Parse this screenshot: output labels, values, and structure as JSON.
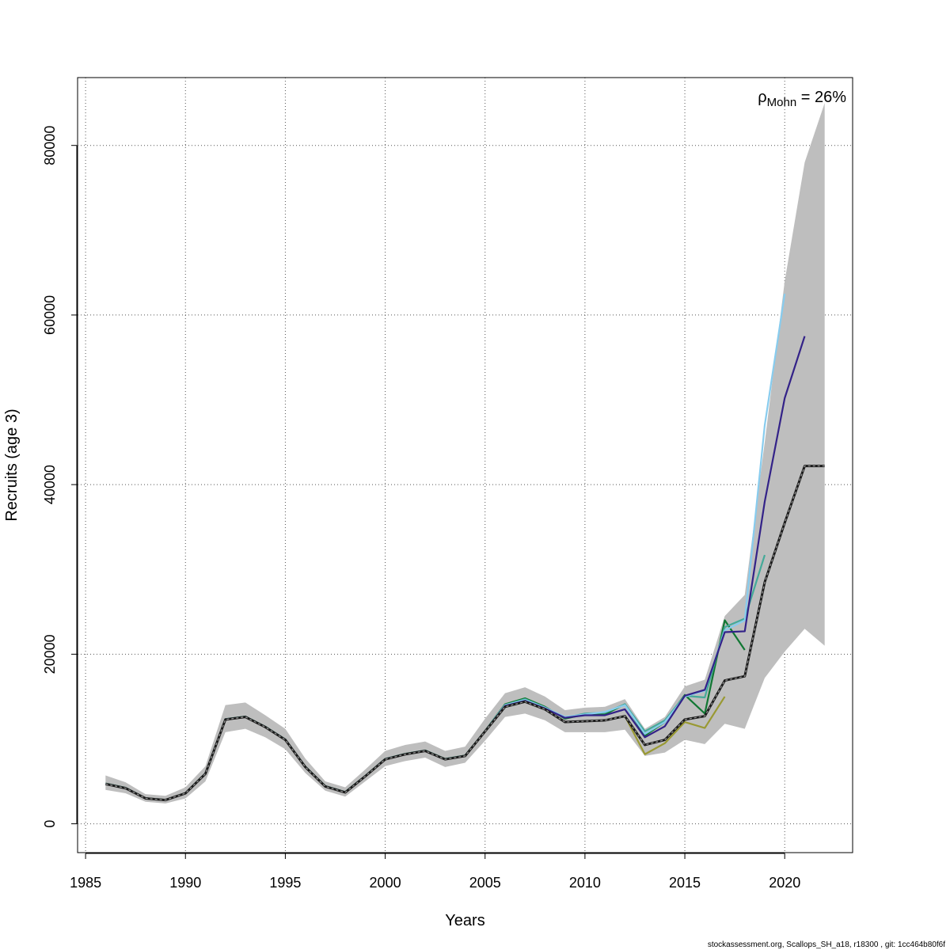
{
  "chart_data": {
    "type": "line",
    "xlabel": "Years",
    "ylabel": "Recruits (age 3)",
    "xlim": [
      1984.6,
      2023.4
    ],
    "ylim": [
      -3400,
      88000
    ],
    "x_ticks": [
      1985,
      1990,
      1995,
      2000,
      2005,
      2010,
      2015,
      2020
    ],
    "y_ticks": [
      0,
      20000,
      40000,
      60000,
      80000
    ],
    "grid": true,
    "annotation": {
      "symbol": "ρ",
      "subscript": "Mohn",
      "text": " = 26%"
    },
    "footer": "stockassessment.org, Scallops_SH_a18, r18300 , git: 1cc464b80f6f",
    "confidence_band": {
      "color": "#bebebe",
      "x": [
        1986,
        1987,
        1988,
        1989,
        1990,
        1991,
        1992,
        1993,
        1994,
        1995,
        1996,
        1997,
        1998,
        1999,
        2000,
        2001,
        2002,
        2003,
        2004,
        2005,
        2006,
        2007,
        2008,
        2009,
        2010,
        2011,
        2012,
        2013,
        2014,
        2015,
        2016,
        2017,
        2018,
        2019,
        2020,
        2021,
        2022
      ],
      "lower": [
        4000,
        3600,
        2600,
        2400,
        3000,
        5000,
        10800,
        11200,
        10200,
        8800,
        6000,
        3900,
        3200,
        5000,
        6800,
        7400,
        7800,
        6700,
        7200,
        9800,
        12600,
        13000,
        12200,
        10800,
        10800,
        10800,
        11100,
        8000,
        8400,
        9900,
        9400,
        11800,
        11200,
        17200,
        20300,
        23000,
        21000
      ],
      "upper": [
        5700,
        4900,
        3500,
        3300,
        4300,
        6800,
        14000,
        14300,
        12800,
        11200,
        7700,
        5000,
        4300,
        6400,
        8600,
        9300,
        9700,
        8600,
        9100,
        12400,
        15400,
        16100,
        15000,
        13400,
        13700,
        13800,
        14700,
        11200,
        12600,
        16200,
        17000,
        24500,
        27000,
        45000,
        64000,
        78000,
        85000
      ]
    },
    "series": [
      {
        "color": "#1a1a1a",
        "dashed": true,
        "x": [
          1986,
          1987,
          1988,
          1989,
          1990,
          1991,
          1992,
          1993,
          1994,
          1995,
          1996,
          1997,
          1998,
          1999,
          2000,
          2001,
          2002,
          2003,
          2004,
          2005,
          2006,
          2007,
          2008,
          2009,
          2010,
          2011,
          2012,
          2013,
          2014,
          2015,
          2016,
          2017,
          2018,
          2019,
          2020,
          2021,
          2022
        ],
        "values": [
          4700,
          4200,
          3000,
          2800,
          3600,
          5900,
          12300,
          12600,
          11400,
          9900,
          6700,
          4400,
          3700,
          5600,
          7600,
          8200,
          8600,
          7600,
          8000,
          10900,
          13800,
          14400,
          13500,
          12000,
          12100,
          12200,
          12700,
          9300,
          9900,
          12300,
          12700,
          16900,
          17400,
          28500,
          35500,
          42200,
          42200
        ]
      },
      {
        "color": "#999933",
        "x": [
          1986,
          1987,
          1988,
          1989,
          1990,
          1991,
          1992,
          1993,
          1994,
          1995,
          1996,
          1997,
          1998,
          1999,
          2000,
          2001,
          2002,
          2003,
          2004,
          2005,
          2006,
          2007,
          2008,
          2009,
          2010,
          2011,
          2012,
          2013,
          2014,
          2015,
          2016,
          2017
        ],
        "values": [
          4700,
          4200,
          3000,
          2800,
          3600,
          5900,
          12300,
          12600,
          11400,
          9900,
          6700,
          4400,
          3700,
          5600,
          7600,
          8200,
          8600,
          7600,
          8000,
          10900,
          13800,
          14400,
          13500,
          12000,
          12100,
          12200,
          12700,
          8200,
          9500,
          12000,
          11300,
          15000
        ]
      },
      {
        "color": "#117733",
        "x": [
          1986,
          1987,
          1988,
          1989,
          1990,
          1991,
          1992,
          1993,
          1994,
          1995,
          1996,
          1997,
          1998,
          1999,
          2000,
          2001,
          2002,
          2003,
          2004,
          2005,
          2006,
          2007,
          2008,
          2009,
          2010,
          2011,
          2012,
          2013,
          2014,
          2015,
          2016,
          2017,
          2018
        ],
        "values": [
          4750,
          4250,
          3020,
          2820,
          3620,
          5950,
          12350,
          12650,
          11450,
          9950,
          6750,
          4450,
          3750,
          5650,
          7650,
          8250,
          8650,
          7650,
          8050,
          10950,
          14100,
          14800,
          13800,
          12400,
          12900,
          12900,
          14100,
          10400,
          12000,
          15200,
          13000,
          24000,
          20500
        ]
      },
      {
        "color": "#44aa99",
        "x": [
          1986,
          1987,
          1988,
          1989,
          1990,
          1991,
          1992,
          1993,
          1994,
          1995,
          1996,
          1997,
          1998,
          1999,
          2000,
          2001,
          2002,
          2003,
          2004,
          2005,
          2006,
          2007,
          2008,
          2009,
          2010,
          2011,
          2012,
          2013,
          2014,
          2015,
          2016,
          2017,
          2018,
          2019
        ],
        "values": [
          4740,
          4240,
          3010,
          2810,
          3610,
          5940,
          12340,
          12640,
          11440,
          9940,
          6740,
          4440,
          3740,
          5640,
          7640,
          8240,
          8640,
          7640,
          8040,
          10940,
          14000,
          14700,
          13700,
          12500,
          13000,
          13100,
          14100,
          10900,
          12200,
          15100,
          14900,
          23200,
          24200,
          31700
        ]
      },
      {
        "color": "#88ccee",
        "x": [
          1986,
          1987,
          1988,
          1989,
          1990,
          1991,
          1992,
          1993,
          1994,
          1995,
          1996,
          1997,
          1998,
          1999,
          2000,
          2001,
          2002,
          2003,
          2004,
          2005,
          2006,
          2007,
          2008,
          2009,
          2010,
          2011,
          2012,
          2013,
          2014,
          2015,
          2016,
          2017,
          2018,
          2019,
          2020
        ],
        "values": [
          4730,
          4230,
          3005,
          2805,
          3605,
          5930,
          12330,
          12630,
          11430,
          9930,
          6730,
          4430,
          3730,
          5630,
          7630,
          8230,
          8630,
          7630,
          8030,
          10930,
          14000,
          14600,
          13700,
          12600,
          12900,
          13200,
          14000,
          10600,
          12000,
          15000,
          15700,
          22800,
          24000,
          47000,
          62500
        ]
      },
      {
        "color": "#332288",
        "x": [
          1986,
          1987,
          1988,
          1989,
          1990,
          1991,
          1992,
          1993,
          1994,
          1995,
          1996,
          1997,
          1998,
          1999,
          2000,
          2001,
          2002,
          2003,
          2004,
          2005,
          2006,
          2007,
          2008,
          2009,
          2010,
          2011,
          2012,
          2013,
          2014,
          2015,
          2016,
          2017,
          2018,
          2019,
          2020,
          2021
        ],
        "values": [
          4720,
          4220,
          3004,
          2804,
          3604,
          5920,
          12320,
          12620,
          11420,
          9920,
          6720,
          4420,
          3720,
          5620,
          7620,
          8220,
          8620,
          7620,
          8020,
          10920,
          13900,
          14500,
          13600,
          12500,
          12800,
          12800,
          13500,
          10200,
          11500,
          15100,
          15800,
          22600,
          22700,
          38000,
          50200,
          57500
        ]
      }
    ]
  }
}
